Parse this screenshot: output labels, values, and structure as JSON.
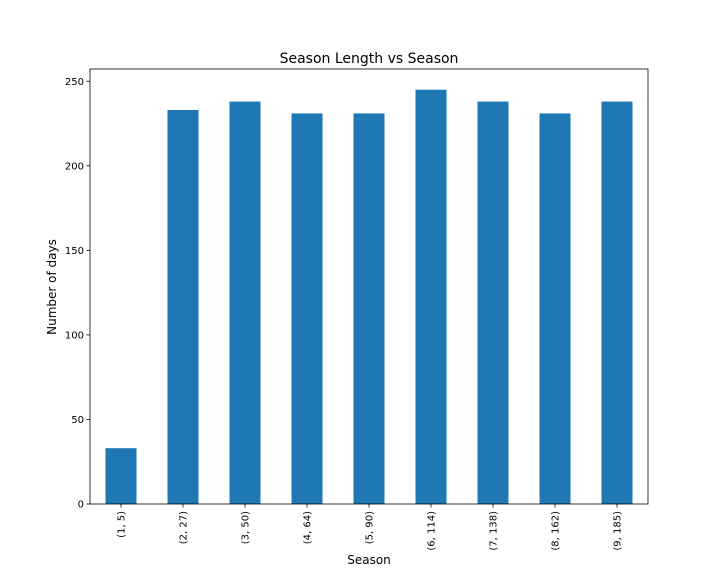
{
  "chart_data": {
    "type": "bar",
    "title": "Season Length vs Season",
    "xlabel": "Season",
    "ylabel": "Number of days",
    "categories": [
      "(1, 5)",
      "(2, 27)",
      "(3, 50)",
      "(4, 64)",
      "(5, 90)",
      "(6, 114)",
      "(7, 138)",
      "(8, 162)",
      "(9, 185)"
    ],
    "values": [
      33,
      233,
      238,
      231,
      231,
      245,
      238,
      231,
      238
    ],
    "ylim": [
      0,
      257.25
    ],
    "yticks": [
      0,
      50,
      100,
      150,
      200,
      250
    ],
    "grid": false,
    "legend": "none",
    "bar_color": "#1f77b4",
    "tick_rotation": "vertical"
  }
}
